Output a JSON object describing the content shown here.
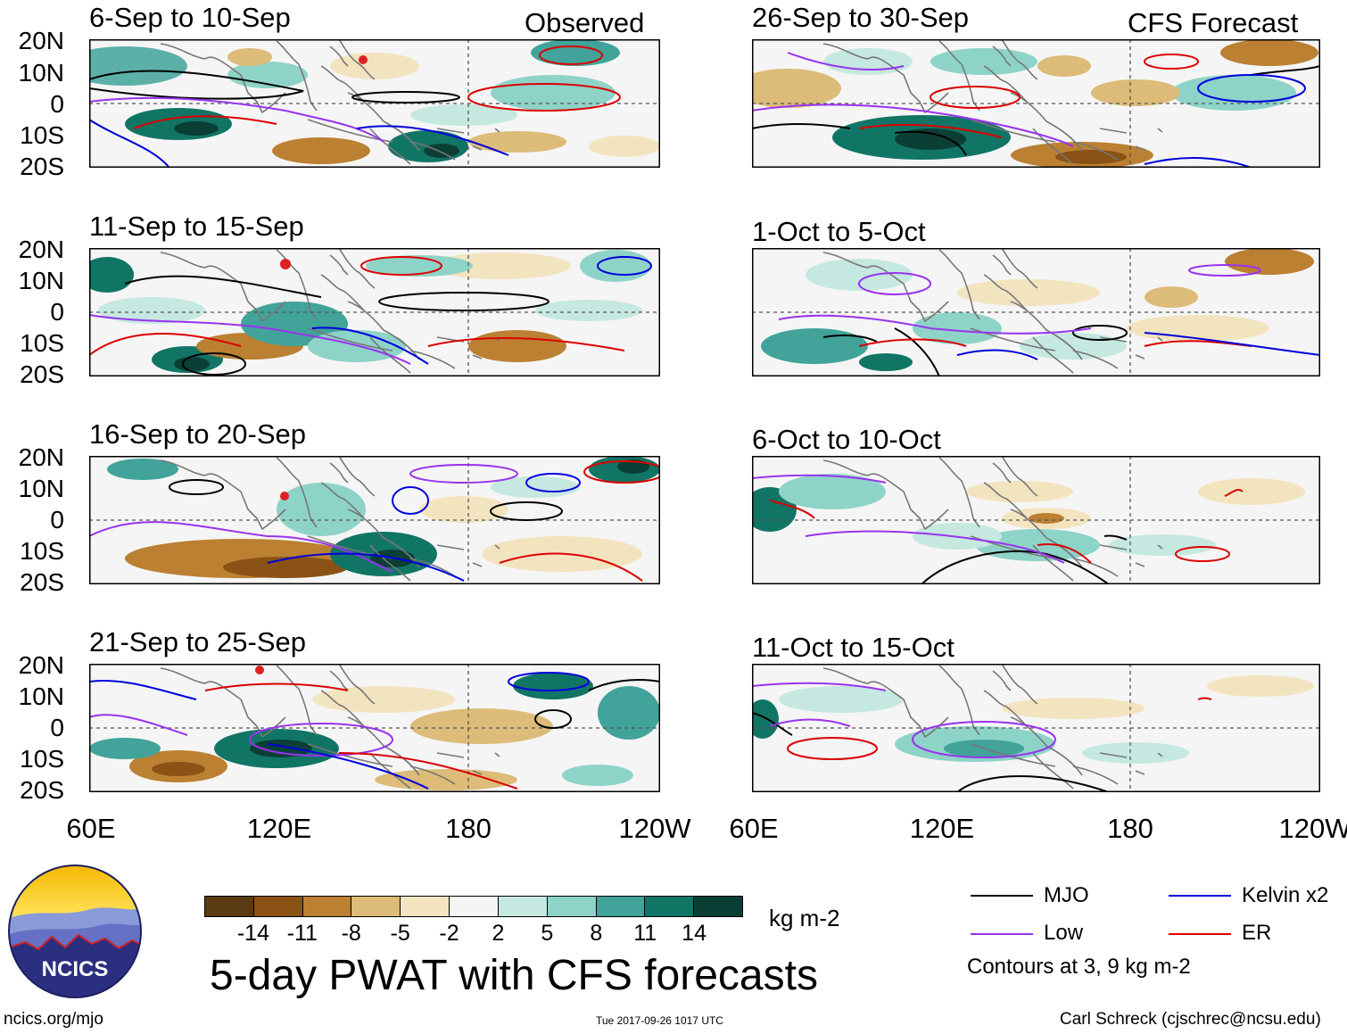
{
  "product_title": "5-day PWAT with CFS forecasts",
  "columns": {
    "left_label": "Observed",
    "right_label": "CFS Forecast"
  },
  "panels_left": [
    {
      "title": "6-Sep to 10-Sep"
    },
    {
      "title": "11-Sep to 15-Sep"
    },
    {
      "title": "16-Sep to 20-Sep"
    },
    {
      "title": "21-Sep to 25-Sep"
    }
  ],
  "panels_right": [
    {
      "title": "26-Sep to 30-Sep"
    },
    {
      "title": "1-Oct to 5-Oct"
    },
    {
      "title": "6-Oct to 10-Oct"
    },
    {
      "title": "11-Oct to 15-Oct"
    }
  ],
  "axes": {
    "lat_labels": [
      "20N",
      "10N",
      "0",
      "10S",
      "20S"
    ],
    "lon_labels": [
      "60E",
      "120E",
      "180",
      "120W"
    ]
  },
  "colorbar": {
    "colors": [
      "#5a3a10",
      "#8a5214",
      "#bb8032",
      "#dcbc78",
      "#f3e4c0",
      "#f5f5f5",
      "#c5e8e0",
      "#8ed3c8",
      "#41a39a",
      "#117566",
      "#0b3f36"
    ],
    "ticks": [
      "-14",
      "-11",
      "-8",
      "-5",
      "-2",
      "2",
      "5",
      "8",
      "11",
      "14"
    ],
    "units": "kg m-2"
  },
  "legend": {
    "items": [
      {
        "label": "MJO",
        "color": "#000000"
      },
      {
        "label": "Kelvin x2",
        "color": "#0000dd"
      },
      {
        "label": "Low",
        "color": "#9933ee"
      },
      {
        "label": "ER",
        "color": "#dd0000"
      }
    ],
    "note": "Contours at 3, 9 kg m-2"
  },
  "logo": {
    "text": "NCICS"
  },
  "footer": {
    "left": "ncics.org/mjo",
    "center": "Tue 2017-09-26 1017 UTC",
    "right": "Carl Schreck (cjschrec@ncsu.edu)"
  }
}
